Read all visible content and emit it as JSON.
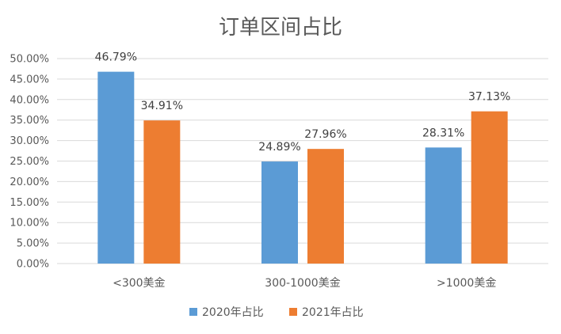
{
  "chart_data": {
    "type": "bar",
    "title": "订单区间占比",
    "categories": [
      "<300美金",
      "300-1000美金",
      ">1000美金"
    ],
    "series": [
      {
        "name": "2020年占比",
        "values": [
          46.79,
          24.89,
          28.31
        ],
        "labels": [
          "46.79%",
          "24.89%",
          "28.31%"
        ],
        "color": "#5b9bd5"
      },
      {
        "name": "2021年占比",
        "values": [
          34.91,
          27.96,
          37.13
        ],
        "labels": [
          "34.91%",
          "27.96%",
          "37.13%"
        ],
        "color": "#ed7d31"
      }
    ],
    "y_ticks": [
      "0.00%",
      "5.00%",
      "10.00%",
      "15.00%",
      "20.00%",
      "25.00%",
      "30.00%",
      "35.00%",
      "40.00%",
      "45.00%",
      "50.00%"
    ],
    "ylim": [
      0,
      50
    ],
    "grid": true,
    "legend_position": "bottom"
  }
}
